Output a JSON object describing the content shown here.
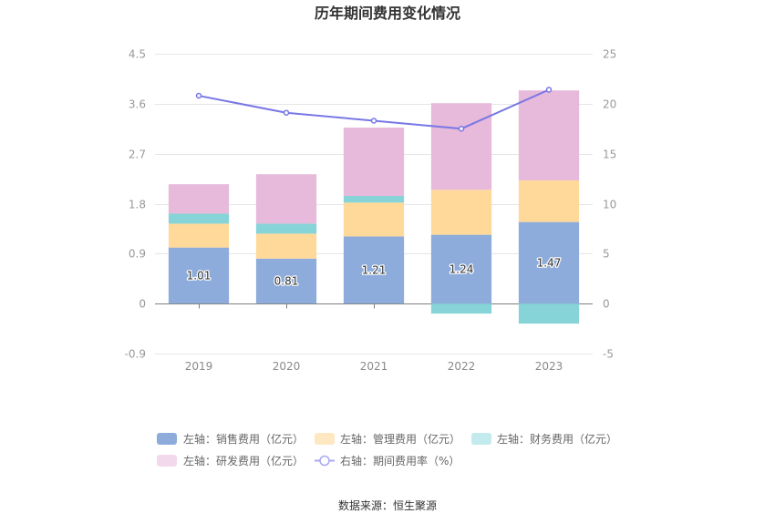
{
  "source": "数据来源：恒生聚源",
  "chart_data": {
    "type": "bar",
    "title": "历年期间费用变化情况",
    "categories": [
      "2019",
      "2020",
      "2021",
      "2022",
      "2023"
    ],
    "left_axis": {
      "ticks": [
        "4.5",
        "3.6",
        "2.7",
        "1.8",
        "0.9",
        "0",
        "-0.9"
      ],
      "ylim": [
        -0.9,
        4.5
      ]
    },
    "right_axis": {
      "ticks": [
        "25",
        "20",
        "15",
        "10",
        "5",
        "0",
        "-5"
      ],
      "ylim": [
        -5,
        25
      ]
    },
    "grid": true,
    "legend_position": "bottom",
    "series": [
      {
        "name": "左轴：销售费用（亿元）",
        "type": "bar",
        "axis": "left",
        "stacked": true,
        "show_labels": true,
        "color": "#8DACDB",
        "legend_color": "#8DACDB",
        "values": [
          1.01,
          0.81,
          1.21,
          1.24,
          1.47
        ]
      },
      {
        "name": "左轴：管理费用（亿元）",
        "type": "bar",
        "axis": "left",
        "stacked": true,
        "show_labels": false,
        "color": "#FFD999",
        "legend_color": "#FFE7C2",
        "values": [
          0.43,
          0.45,
          0.61,
          0.81,
          0.75
        ]
      },
      {
        "name": "左轴：财务费用（亿元）",
        "type": "bar",
        "axis": "left",
        "stacked": true,
        "show_labels": false,
        "color": "#86D4D8",
        "legend_color": "#C3EAEC",
        "values": [
          0.18,
          0.18,
          0.12,
          -0.18,
          -0.36
        ]
      },
      {
        "name": "左轴：研发费用（亿元）",
        "type": "bar",
        "axis": "left",
        "stacked": true,
        "show_labels": false,
        "color": "#E7B9DA",
        "legend_color": "#F3D9EC",
        "values": [
          0.53,
          0.89,
          1.23,
          1.56,
          1.62
        ]
      },
      {
        "name": "右轴：期间费用率（%）",
        "type": "line",
        "axis": "right",
        "color": "#7777E6",
        "legend_color": "#A9A9F0",
        "values": [
          20.8,
          19.1,
          18.3,
          17.5,
          21.4
        ]
      }
    ]
  }
}
